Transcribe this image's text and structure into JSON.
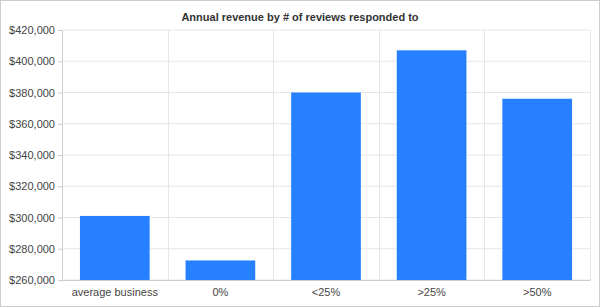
{
  "chart_data": {
    "type": "bar",
    "title": "Annual revenue by # of reviews responded to",
    "categories": [
      "average business",
      "0%",
      "<25%",
      ">25%",
      ">50%"
    ],
    "values": [
      301000,
      272500,
      380000,
      407000,
      376000
    ],
    "color": "#2680ff",
    "ylim": [
      260000,
      420000
    ],
    "yticks": [
      {
        "value": 260000,
        "label": "$260,000"
      },
      {
        "value": 280000,
        "label": "$280,000"
      },
      {
        "value": 300000,
        "label": "$300,000"
      },
      {
        "value": 320000,
        "label": "$320,000"
      },
      {
        "value": 340000,
        "label": "$340,000"
      },
      {
        "value": 360000,
        "label": "$360,000"
      },
      {
        "value": 380000,
        "label": "$380,000"
      },
      {
        "value": 400000,
        "label": "$400,000"
      },
      {
        "value": 420000,
        "label": "$420,000"
      }
    ],
    "grid": true
  }
}
